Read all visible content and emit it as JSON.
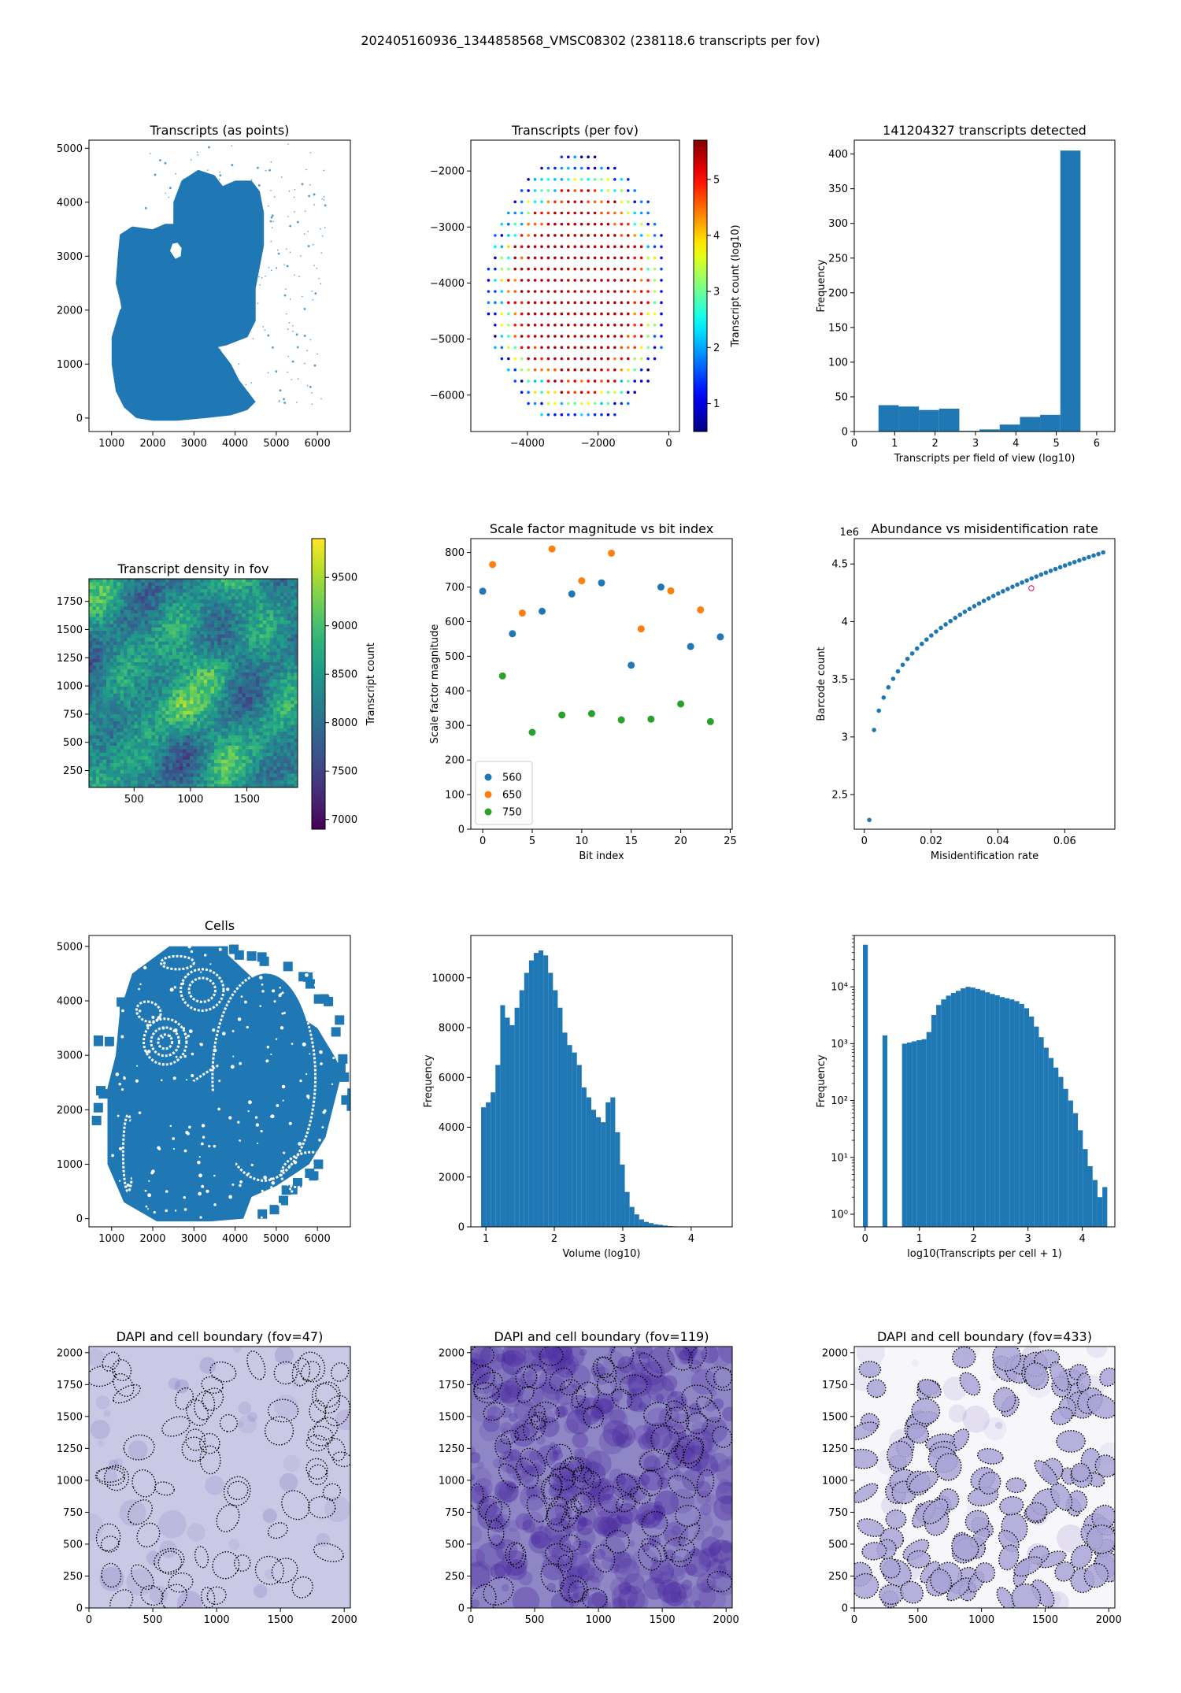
{
  "figure": {
    "suptitle": "202405160936_1344858568_VMSC08302 (238118.6 transcripts per fov)"
  },
  "colors": {
    "blue": "#1f77b4",
    "orange": "#ff7f0e",
    "green": "#2ca02c",
    "dapi_light": "#dcdcf0",
    "dapi_dark": "#4b2aa0"
  },
  "chart_data": [
    {
      "id": "p1",
      "type": "scatter",
      "title": "Transcripts (as points)",
      "xlabel": "",
      "ylabel": "",
      "xlim": [
        450,
        6800
      ],
      "ylim": [
        -250,
        5150
      ],
      "xticks": [
        1000,
        2000,
        3000,
        4000,
        5000,
        6000
      ],
      "yticks": [
        0,
        1000,
        2000,
        3000,
        4000,
        5000
      ],
      "blob_upper": [
        [
          1300,
          1000
        ],
        [
          1900,
          950
        ],
        [
          2600,
          1050
        ],
        [
          3200,
          1250
        ],
        [
          3800,
          1350
        ],
        [
          4300,
          1500
        ],
        [
          4500,
          1800
        ],
        [
          4500,
          2400
        ],
        [
          4700,
          3200
        ],
        [
          4700,
          3800
        ],
        [
          4600,
          4200
        ],
        [
          4400,
          4400
        ],
        [
          4000,
          4400
        ],
        [
          3700,
          4300
        ],
        [
          3500,
          4500
        ],
        [
          3100,
          4600
        ],
        [
          2700,
          4400
        ],
        [
          2500,
          4000
        ],
        [
          2500,
          3600
        ],
        [
          2300,
          3600
        ],
        [
          2000,
          3500
        ],
        [
          1500,
          3550
        ],
        [
          1200,
          3400
        ],
        [
          1150,
          3000
        ],
        [
          1100,
          2500
        ],
        [
          1200,
          2200
        ],
        [
          1300,
          1800
        ],
        [
          1250,
          1400
        ]
      ],
      "blob_lower": [
        [
          1000,
          1000
        ],
        [
          1100,
          500
        ],
        [
          1300,
          200
        ],
        [
          1600,
          0
        ],
        [
          2000,
          -50
        ],
        [
          2600,
          -50
        ],
        [
          3300,
          0
        ],
        [
          3900,
          50
        ],
        [
          4300,
          150
        ],
        [
          4500,
          300
        ],
        [
          4300,
          500
        ],
        [
          4100,
          700
        ],
        [
          3900,
          1000
        ],
        [
          3500,
          1400
        ],
        [
          2800,
          1700
        ],
        [
          2000,
          2000
        ],
        [
          1400,
          2200
        ],
        [
          1200,
          2000
        ],
        [
          1000,
          1500
        ]
      ],
      "hole": [
        [
          2420,
          3100
        ],
        [
          2550,
          2950
        ],
        [
          2680,
          3000
        ],
        [
          2700,
          3150
        ],
        [
          2600,
          3250
        ],
        [
          2480,
          3230
        ]
      ]
    },
    {
      "id": "p2",
      "type": "scatter",
      "title": "Transcripts (per fov)",
      "xlabel": "",
      "ylabel": "",
      "xlim": [
        -5600,
        300
      ],
      "ylim": [
        -6650,
        -1450
      ],
      "xticks": [
        -4000,
        -2000,
        0
      ],
      "yticks": [
        -6000,
        -5000,
        -4000,
        -3000,
        -2000
      ],
      "grid": {
        "x_start": -5100,
        "x_step": 188,
        "y_start": -1750,
        "y_step": 200,
        "columns": 27,
        "rows": 24
      },
      "colorbar": {
        "label": "Transcript count (log10)",
        "min": 0.5,
        "max": 5.7,
        "ticks": [
          1,
          2,
          3,
          4,
          5
        ],
        "colormap": "jet"
      }
    },
    {
      "id": "p3",
      "type": "bar",
      "title": "141204327 transcripts detected",
      "xlabel": "Transcripts per field of view (log10)",
      "ylabel": "Frequency",
      "xlim": [
        0,
        6.45
      ],
      "ylim": [
        0,
        420
      ],
      "xticks": [
        0,
        1,
        2,
        3,
        4,
        5,
        6
      ],
      "yticks": [
        0,
        50,
        100,
        150,
        200,
        250,
        300,
        350,
        400
      ],
      "bin_edges": [
        0.6,
        1.1,
        1.6,
        2.1,
        2.6,
        3.1,
        3.6,
        4.1,
        4.6,
        5.1,
        5.6
      ],
      "values": [
        38,
        36,
        31,
        33,
        1,
        3,
        10,
        21,
        24,
        405
      ]
    },
    {
      "id": "p4",
      "type": "heatmap",
      "title": "Transcript density in fov",
      "xlabel": "",
      "ylabel": "",
      "xlim": [
        100,
        1950
      ],
      "ylim": [
        100,
        1950
      ],
      "xticks": [
        500,
        1000,
        1500
      ],
      "yticks": [
        250,
        500,
        750,
        1000,
        1250,
        1500,
        1750
      ],
      "colorbar": {
        "label": "Transcript count",
        "min": 6900,
        "max": 9900,
        "ticks": [
          7000,
          7500,
          8000,
          8500,
          9000,
          9500
        ],
        "colormap": "viridis"
      }
    },
    {
      "id": "p5",
      "type": "scatter",
      "title": "Scale factor magnitude vs bit index",
      "xlabel": "Bit index",
      "ylabel": "Scale factor magnitude",
      "xlim": [
        -1.2,
        25.2
      ],
      "ylim": [
        0,
        840
      ],
      "xticks": [
        0,
        5,
        10,
        15,
        20,
        25
      ],
      "yticks": [
        0,
        100,
        200,
        300,
        400,
        500,
        600,
        700,
        800
      ],
      "legend_position": "lower-left",
      "series": [
        {
          "name": "560",
          "x": [
            0,
            3,
            6,
            9,
            12,
            15,
            18,
            21,
            24
          ],
          "y": [
            688,
            565,
            630,
            680,
            712,
            474,
            700,
            528,
            556
          ]
        },
        {
          "name": "650",
          "x": [
            1,
            4,
            7,
            10,
            13,
            16,
            19,
            22
          ],
          "y": [
            765,
            625,
            810,
            718,
            798,
            579,
            689,
            634
          ]
        },
        {
          "name": "750",
          "x": [
            2,
            5,
            8,
            11,
            14,
            17,
            20,
            23
          ],
          "y": [
            443,
            280,
            330,
            334,
            316,
            318,
            362,
            311
          ]
        }
      ]
    },
    {
      "id": "p6",
      "type": "scatter",
      "title": "Abundance vs misidentification rate",
      "xlabel": "Misidentification rate",
      "ylabel": "Barcode count",
      "offset_text": "1e6",
      "xlim": [
        -0.003,
        0.075
      ],
      "ylim": [
        2.2,
        4.72
      ],
      "xticks": [
        0.0,
        0.02,
        0.04,
        0.06
      ],
      "yticks": [
        2.5,
        3.0,
        3.5,
        4.0,
        4.5
      ],
      "curve_exponent": 0.28,
      "highlight": {
        "x": 0.05,
        "y": 4.29
      }
    },
    {
      "id": "p7",
      "type": "scatter",
      "title": "Cells",
      "xlabel": "",
      "ylabel": "",
      "xlim": [
        450,
        6800
      ],
      "ylim": [
        -150,
        5200
      ],
      "xticks": [
        1000,
        2000,
        3000,
        4000,
        5000,
        6000
      ],
      "yticks": [
        0,
        1000,
        2000,
        3000,
        4000,
        5000
      ]
    },
    {
      "id": "p8",
      "type": "bar",
      "title": "",
      "xlabel": "Volume (log10)",
      "ylabel": "Frequency",
      "xlim": [
        0.78,
        4.6
      ],
      "ylim": [
        0,
        11700
      ],
      "xticks": [
        1,
        2,
        3,
        4
      ],
      "yticks": [
        0,
        2000,
        4000,
        6000,
        8000,
        10000
      ],
      "bin_start": 0.93,
      "bin_width": 0.07,
      "values": [
        4800,
        5000,
        5400,
        6500,
        8900,
        8400,
        8100,
        8800,
        9500,
        10200,
        10700,
        11000,
        11100,
        10900,
        10200,
        9500,
        8800,
        7800,
        7300,
        7000,
        6500,
        5600,
        5200,
        4700,
        4400,
        4200,
        5000,
        5200,
        3800,
        2500,
        1400,
        800,
        500,
        300,
        200,
        150,
        100,
        80,
        50,
        30,
        20,
        10,
        8,
        5
      ]
    },
    {
      "id": "p9",
      "type": "bar",
      "title": "",
      "xlabel": "log10(Transcripts per cell + 1)",
      "ylabel": "Frequency",
      "y_scale": "log",
      "xlim": [
        -0.2,
        4.6
      ],
      "ylim": [
        0.6,
        80000
      ],
      "xticks": [
        0,
        1,
        2,
        3,
        4
      ],
      "yticks": [
        1,
        10,
        100,
        1000,
        10000
      ],
      "ytick_labels": [
        "10⁰",
        "10¹",
        "10²",
        "10³",
        "10⁴"
      ],
      "bin_start": -0.04,
      "bin_width": 0.09,
      "values": [
        55000,
        0,
        0,
        0,
        1400,
        0,
        0,
        0,
        1000,
        1050,
        1100,
        1150,
        1200,
        1600,
        3200,
        4800,
        6000,
        7000,
        7800,
        8500,
        9400,
        10000,
        9700,
        9200,
        8700,
        8000,
        7500,
        7100,
        6600,
        6300,
        6000,
        5600,
        5000,
        4200,
        3000,
        2000,
        1300,
        850,
        560,
        380,
        260,
        160,
        100,
        60,
        30,
        14,
        7,
        4,
        2,
        3
      ]
    },
    {
      "id": "p10",
      "type": "heatmap",
      "title": "DAPI and cell boundary (fov=47)",
      "xlabel": "",
      "ylabel": "",
      "xlim": [
        0,
        2048
      ],
      "ylim": [
        0,
        2048
      ],
      "xticks": [
        0,
        500,
        1000,
        1500,
        2000
      ],
      "yticks": [
        0,
        250,
        500,
        750,
        1000,
        1250,
        1500,
        1750,
        2000
      ],
      "base_color": "#c9c9e5",
      "cell_fill": "none"
    },
    {
      "id": "p11",
      "type": "heatmap",
      "title": "DAPI and cell boundary (fov=119)",
      "xlabel": "",
      "ylabel": "",
      "xlim": [
        0,
        2048
      ],
      "ylim": [
        0,
        2048
      ],
      "xticks": [
        0,
        500,
        1000,
        1500,
        2000
      ],
      "yticks": [
        0,
        250,
        500,
        750,
        1000,
        1250,
        1500,
        1750,
        2000
      ],
      "base_color": "#8e86c5",
      "cell_fill": "none"
    },
    {
      "id": "p12",
      "type": "heatmap",
      "title": "DAPI and cell boundary (fov=433)",
      "xlabel": "",
      "ylabel": "",
      "xlim": [
        0,
        2048
      ],
      "ylim": [
        0,
        2048
      ],
      "xticks": [
        0,
        500,
        1000,
        1500,
        2000
      ],
      "yticks": [
        0,
        250,
        500,
        750,
        1000,
        1250,
        1500,
        1750,
        2000
      ],
      "base_color": "#f6f6fb",
      "cell_fill": "#a9a5d6"
    }
  ]
}
